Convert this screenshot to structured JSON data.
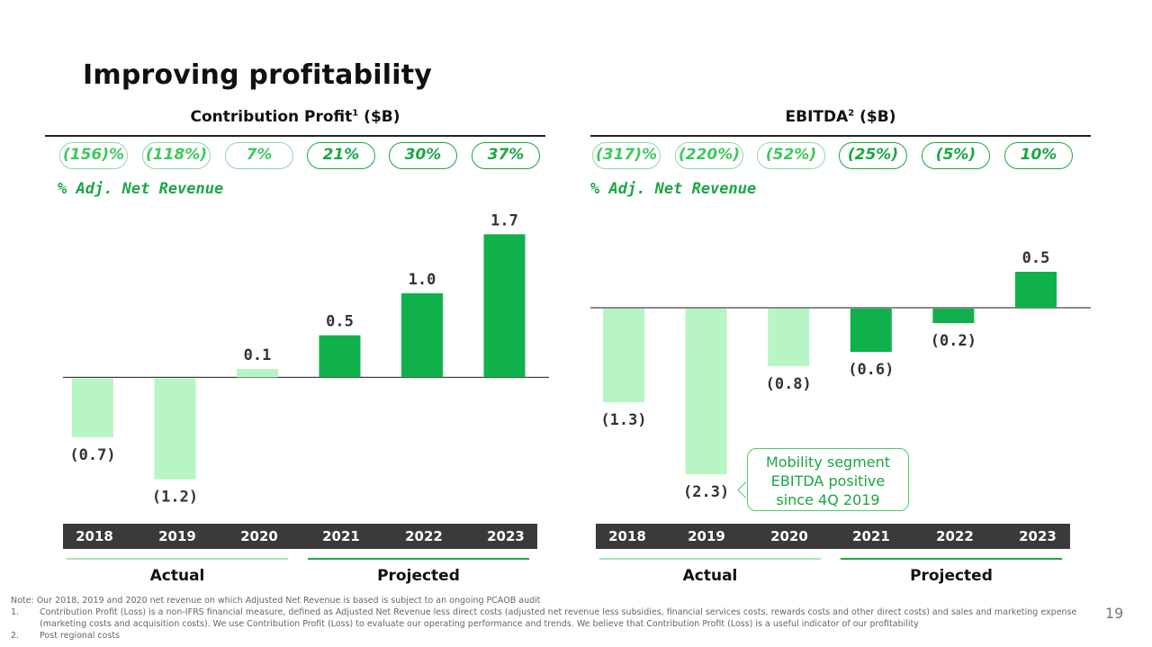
{
  "page": {
    "title": "Improving profitability",
    "page_number": "19"
  },
  "colors": {
    "actual_bar": "#b8f5c4",
    "projected_bar": "#10b14a",
    "year_bar": "#3a3a3a",
    "accent": "#1aa743"
  },
  "left": {
    "title_main": "Contribution Profit",
    "title_sup": "1",
    "title_unit": " ($B)",
    "revenue_label": "% Adj. Net Revenue",
    "pills": [
      {
        "text": "(156)%",
        "kind": "actual"
      },
      {
        "text": "(118%)",
        "kind": "actual"
      },
      {
        "text": "7%",
        "kind": "actual"
      },
      {
        "text": "21%",
        "kind": "projected"
      },
      {
        "text": "30%",
        "kind": "projected"
      },
      {
        "text": "37%",
        "kind": "projected"
      }
    ],
    "actual_label": "Actual",
    "projected_label": "Projected"
  },
  "right": {
    "title_main": "EBITDA",
    "title_sup": "2",
    "title_unit": " ($B)",
    "revenue_label": "% Adj. Net Revenue",
    "pills": [
      {
        "text": "(317)%",
        "kind": "actual"
      },
      {
        "text": "(220%)",
        "kind": "actual"
      },
      {
        "text": "(52%)",
        "kind": "actual"
      },
      {
        "text": "(25%)",
        "kind": "projected"
      },
      {
        "text": "(5%)",
        "kind": "projected"
      },
      {
        "text": "10%",
        "kind": "projected"
      }
    ],
    "callout": [
      "Mobility segment",
      "EBITDA positive",
      "since 4Q 2019"
    ],
    "actual_label": "Actual",
    "projected_label": "Projected"
  },
  "chart_data": [
    {
      "type": "bar",
      "title": "Contribution Profit ($B)",
      "categories": [
        "2018",
        "2019",
        "2020",
        "2021",
        "2022",
        "2023"
      ],
      "values": [
        -0.7,
        -1.2,
        0.1,
        0.5,
        1.0,
        1.7
      ],
      "value_labels": [
        "(0.7)",
        "(1.2)",
        "0.1",
        "0.5",
        "1.0",
        "1.7"
      ],
      "period": [
        "actual",
        "actual",
        "actual",
        "projected",
        "projected",
        "projected"
      ],
      "ylim": [
        -1.3,
        1.8
      ]
    },
    {
      "type": "bar",
      "title": "EBITDA ($B)",
      "categories": [
        "2018",
        "2019",
        "2020",
        "2021",
        "2022",
        "2023"
      ],
      "values": [
        -1.3,
        -2.3,
        -0.8,
        -0.6,
        -0.2,
        0.5
      ],
      "value_labels": [
        "(1.3)",
        "(2.3)",
        "(0.8)",
        "(0.6)",
        "(0.2)",
        "0.5"
      ],
      "period": [
        "actual",
        "actual",
        "actual",
        "projected",
        "projected",
        "projected"
      ],
      "ylim": [
        -2.4,
        0.9
      ]
    }
  ],
  "footnotes": {
    "note": "Note: Our 2018, 2019 and 2020 net revenue on which Adjusted Net Revenue is based is subject to an ongoing PCAOB audit",
    "items": [
      {
        "num": "1.",
        "text": "Contribution Profit (Loss) is a non-IFRS financial measure, defined as Adjusted Net Revenue less direct costs (adjusted net revenue less subsidies, financial services costs, rewards costs and other direct costs) and sales and marketing expense",
        "cont": "(marketing costs and acquisition costs). We use Contribution Profit (Loss) to evaluate our operating performance and trends. We believe that Contribution Profit (Loss) is a useful indicator of our profitability"
      },
      {
        "num": "2.",
        "text": "Post regional costs",
        "cont": ""
      }
    ]
  }
}
